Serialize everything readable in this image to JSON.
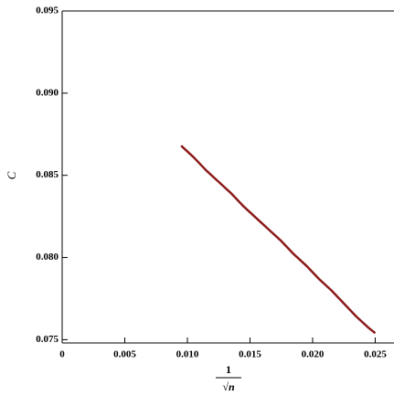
{
  "chart_data": {
    "type": "line",
    "ylabel": "C",
    "xlabel_numerator": "1",
    "xlabel_denominator": "√n",
    "x": [
      0.0095,
      0.0105,
      0.0115,
      0.0125,
      0.0135,
      0.0145,
      0.0155,
      0.0165,
      0.0175,
      0.0185,
      0.0195,
      0.0205,
      0.0215,
      0.0225,
      0.0235,
      0.0245,
      0.025
    ],
    "series": [
      {
        "color": "#8b1a1a",
        "values": [
          0.0868,
          0.0861,
          0.0853,
          0.0846,
          0.0839,
          0.0831,
          0.0824,
          0.0817,
          0.081,
          0.0802,
          0.0795,
          0.0787,
          0.078,
          0.0772,
          0.0764,
          0.0757,
          0.0754
        ]
      }
    ],
    "xlim": [
      0,
      0.0265
    ],
    "ylim": [
      0.0748,
      0.095
    ],
    "xticks": [
      0,
      0.005,
      {
        "value": 0.01,
        "label": "0.010"
      },
      0.015,
      {
        "value": 0.02,
        "label": "0.020"
      },
      0.025
    ],
    "yticks": [
      0.075,
      {
        "value": 0.08,
        "label": "0.080"
      },
      0.085,
      {
        "value": 0.09,
        "label": "0.090"
      },
      0.095
    ]
  }
}
